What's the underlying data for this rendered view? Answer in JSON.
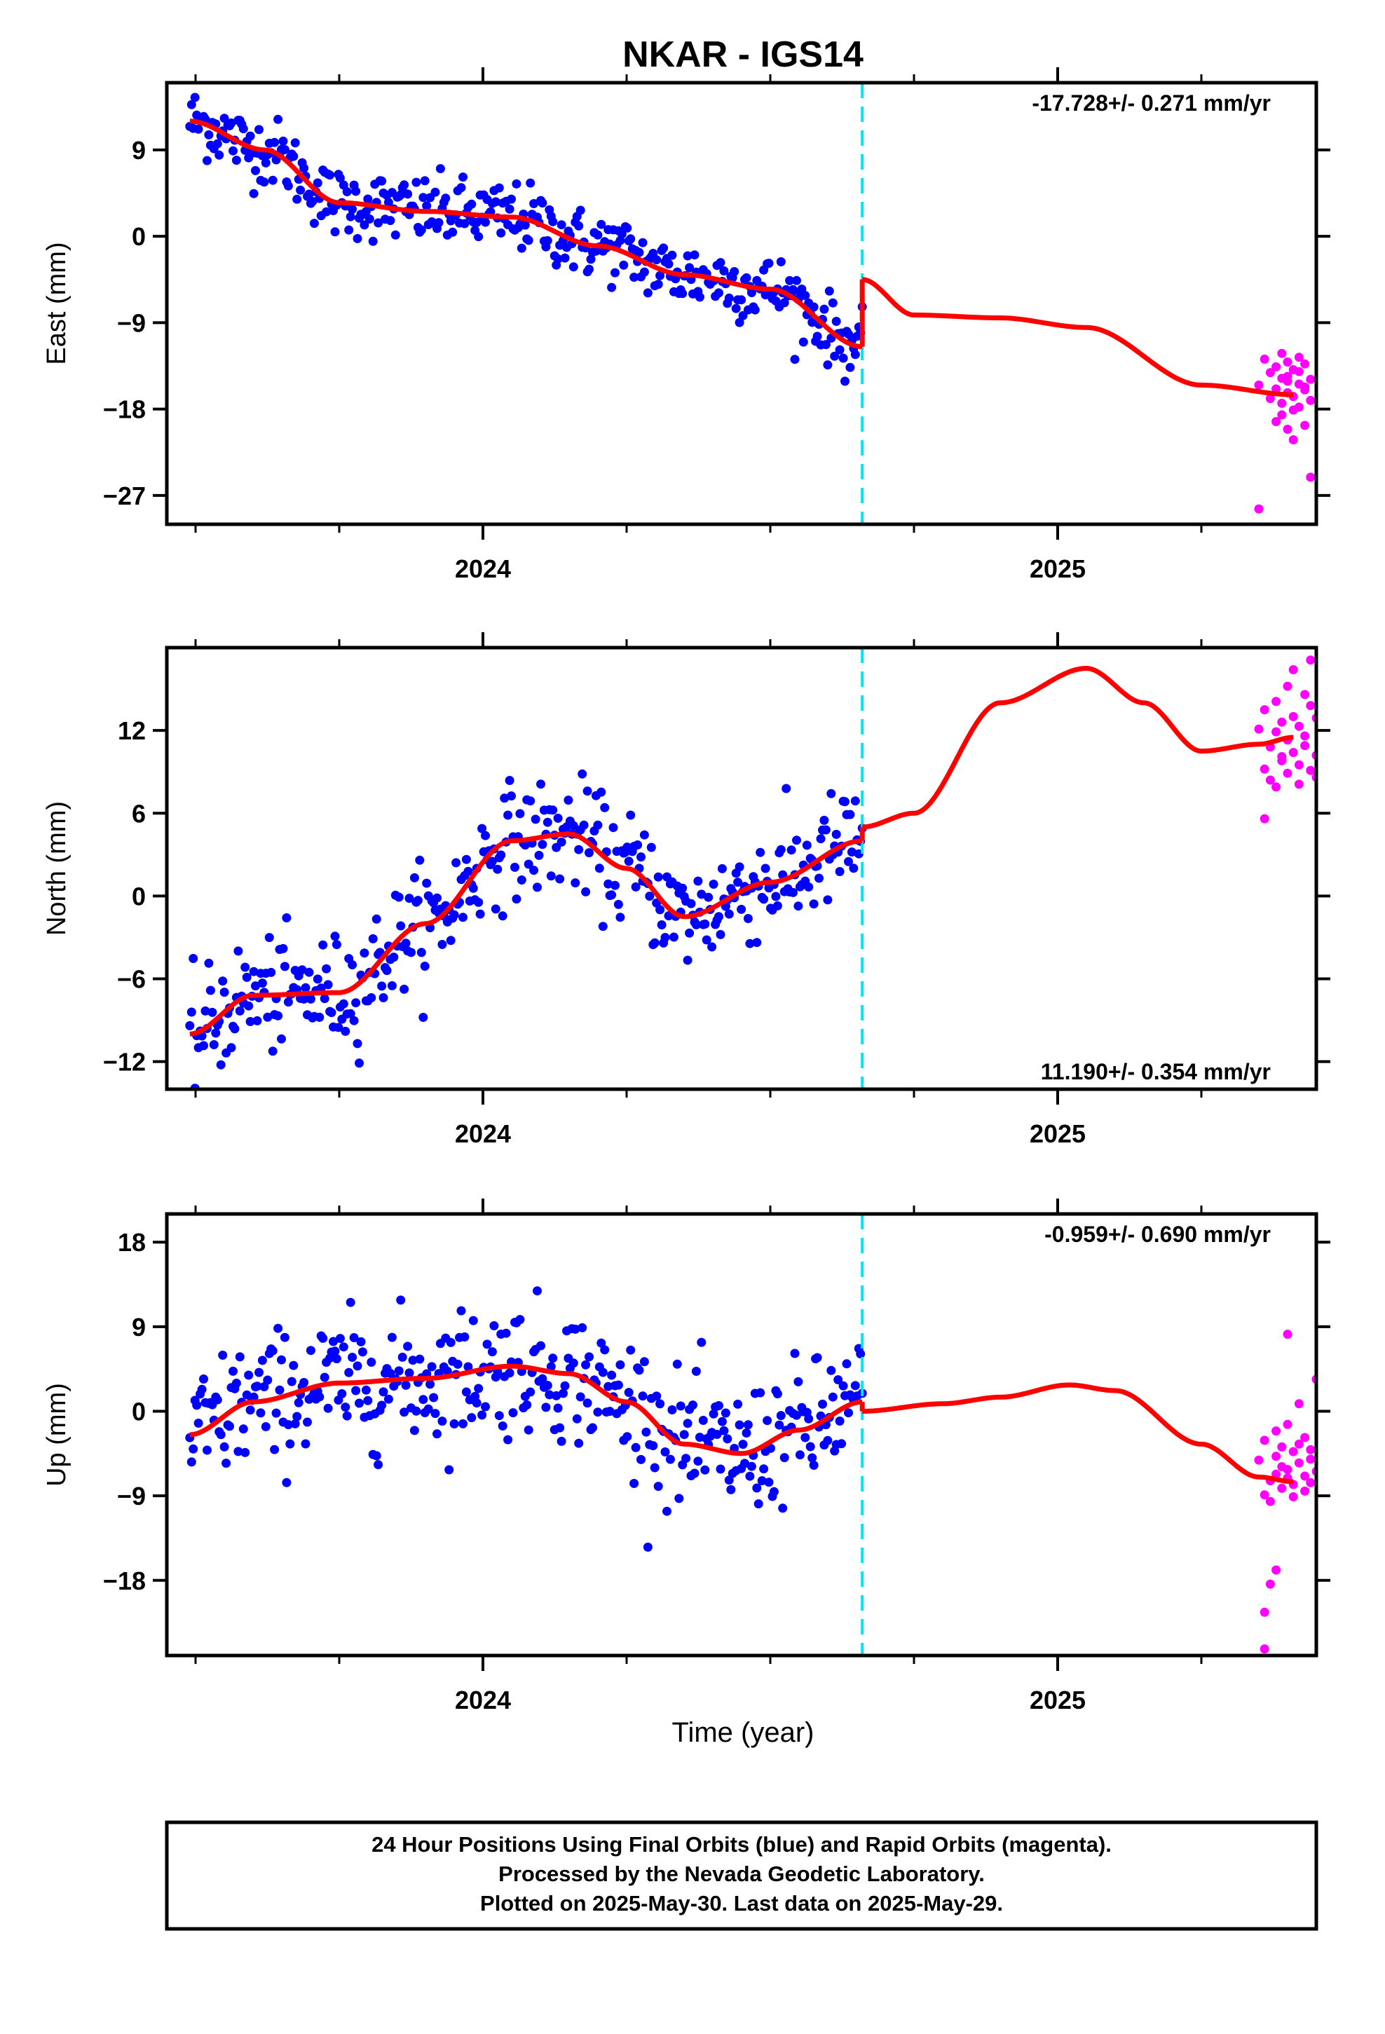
{
  "title": "NKAR - IGS14",
  "xlabel": "Time (year)",
  "footer": {
    "line1": "24 Hour Positions Using Final Orbits (blue) and Rapid Orbits (magenta).",
    "line2": "Processed by the Nevada Geodetic Laboratory.",
    "line3": "Plotted on 2025-May-30. Last data on 2025-May-29."
  },
  "colors": {
    "final": "#0000ff",
    "rapid": "#ff00ff",
    "model": "#ff0000",
    "break": "#00e5ee",
    "frame": "#000000"
  },
  "chart_data": [
    {
      "type": "scatter",
      "name": "east",
      "ylabel": "East (mm)",
      "xlim": [
        2023.45,
        2025.45
      ],
      "ylim": [
        -30,
        16
      ],
      "yticks": [
        -27,
        -18,
        -9,
        0,
        9
      ],
      "xticks": [
        2024,
        2025
      ],
      "rate": "-17.728+/- 0.271 mm/yr",
      "rate_position": "top-right",
      "break_x": 2024.66,
      "final_span": [
        2023.49,
        2024.66
      ],
      "rapid_span": [
        2025.34,
        2025.41
      ],
      "model_knots": [
        [
          2023.49,
          12
        ],
        [
          2023.62,
          9
        ],
        [
          2023.75,
          3.5
        ],
        [
          2023.9,
          2.6
        ],
        [
          2024.05,
          2
        ],
        [
          2024.2,
          -1
        ],
        [
          2024.35,
          -4
        ],
        [
          2024.5,
          -5.5
        ],
        [
          2024.66,
          -11.5
        ],
        [
          2024.66,
          -4.5
        ],
        [
          2024.75,
          -8.2
        ],
        [
          2024.9,
          -8.5
        ],
        [
          2025.05,
          -9.5
        ],
        [
          2025.25,
          -15.5
        ],
        [
          2025.41,
          -16.5
        ]
      ],
      "final_knots": [
        [
          2023.49,
          12
        ],
        [
          2023.62,
          9
        ],
        [
          2023.75,
          3.5
        ],
        [
          2023.9,
          2.6
        ],
        [
          2024.05,
          2
        ],
        [
          2024.2,
          -1
        ],
        [
          2024.35,
          -4
        ],
        [
          2024.5,
          -5.5
        ],
        [
          2024.66,
          -11.5
        ]
      ],
      "final_scatter": 1.8,
      "final_count": 390,
      "rapid_values": [
        -15.5,
        -12.8,
        -14.2,
        -16.9,
        -19.3,
        -13.6,
        -15.9,
        -18.6,
        -14.8,
        -12.2,
        -17.4,
        -20.1,
        -13.1,
        -16.3,
        -14.6,
        -15.1,
        -21.2,
        -13.9,
        -16.7,
        -18.1,
        -12.6,
        -15.4,
        -17.8,
        -14.1,
        -16.0,
        -13.3,
        -19.7,
        -15.7,
        -14.9,
        -17.1,
        -28.4,
        -25.1
      ],
      "rapid_x": [
        2025.35,
        2025.36,
        2025.37,
        2025.37,
        2025.38,
        2025.38,
        2025.38,
        2025.39,
        2025.39,
        2025.39,
        2025.39,
        2025.4,
        2025.4,
        2025.4,
        2025.4,
        2025.4,
        2025.41,
        2025.41,
        2025.41,
        2025.41,
        2025.42,
        2025.42,
        2025.42,
        2025.42,
        2025.43,
        2025.43,
        2025.43,
        2025.43,
        2025.44,
        2025.44,
        2025.35,
        2025.44
      ]
    },
    {
      "type": "scatter",
      "name": "north",
      "ylabel": "North (mm)",
      "xlim": [
        2023.45,
        2025.45
      ],
      "ylim": [
        -14,
        18
      ],
      "yticks": [
        -12,
        -6,
        0,
        6,
        12
      ],
      "xticks": [
        2024,
        2025
      ],
      "rate": "11.190+/- 0.354 mm/yr",
      "rate_position": "bottom-right",
      "break_x": 2024.66,
      "final_span": [
        2023.49,
        2024.66
      ],
      "rapid_span": [
        2025.34,
        2025.41
      ],
      "model_knots": [
        [
          2023.49,
          -10
        ],
        [
          2023.6,
          -7.2
        ],
        [
          2023.75,
          -7
        ],
        [
          2023.9,
          -2
        ],
        [
          2024.05,
          4
        ],
        [
          2024.15,
          4.5
        ],
        [
          2024.25,
          2
        ],
        [
          2024.35,
          -1.5
        ],
        [
          2024.5,
          1
        ],
        [
          2024.66,
          4
        ],
        [
          2024.66,
          5
        ],
        [
          2024.75,
          6
        ],
        [
          2024.9,
          14
        ],
        [
          2025.05,
          16.5
        ],
        [
          2025.15,
          14
        ],
        [
          2025.25,
          10.5
        ],
        [
          2025.35,
          11
        ],
        [
          2025.41,
          11.5
        ]
      ],
      "final_knots": [
        [
          2023.49,
          -10
        ],
        [
          2023.6,
          -7.2
        ],
        [
          2023.75,
          -7
        ],
        [
          2023.9,
          -2
        ],
        [
          2024.05,
          4
        ],
        [
          2024.15,
          4.5
        ],
        [
          2024.25,
          2
        ],
        [
          2024.35,
          -1.5
        ],
        [
          2024.5,
          1
        ],
        [
          2024.66,
          4
        ]
      ],
      "final_scatter": 2.0,
      "final_count": 390,
      "rapid_values": [
        12.1,
        9.2,
        13.5,
        8.4,
        10.8,
        11.9,
        14.1,
        7.9,
        10.1,
        12.6,
        9.8,
        15.2,
        8.9,
        11.3,
        13.0,
        10.4,
        16.4,
        9.5,
        12.3,
        8.1,
        14.6,
        10.9,
        11.6,
        9.1,
        17.1,
        13.8,
        8.6,
        12.9,
        5.6,
        10.2
      ],
      "rapid_x": [
        2025.35,
        2025.36,
        2025.36,
        2025.37,
        2025.37,
        2025.38,
        2025.38,
        2025.38,
        2025.39,
        2025.39,
        2025.39,
        2025.4,
        2025.4,
        2025.4,
        2025.41,
        2025.41,
        2025.41,
        2025.42,
        2025.42,
        2025.42,
        2025.43,
        2025.43,
        2025.43,
        2025.44,
        2025.44,
        2025.44,
        2025.45,
        2025.45,
        2025.36,
        2025.45
      ]
    },
    {
      "type": "scatter",
      "name": "up",
      "ylabel": "Up (mm)",
      "xlim": [
        2023.45,
        2025.45
      ],
      "ylim": [
        -26,
        21
      ],
      "yticks": [
        -18,
        -9,
        0,
        9,
        18
      ],
      "xticks": [
        2024,
        2025
      ],
      "rate": "-0.959+/- 0.690 mm/yr",
      "rate_position": "top-right",
      "break_x": 2024.66,
      "final_span": [
        2023.49,
        2024.66
      ],
      "rapid_span": [
        2025.34,
        2025.41
      ],
      "model_knots": [
        [
          2023.49,
          -2.5
        ],
        [
          2023.6,
          1
        ],
        [
          2023.75,
          3
        ],
        [
          2023.9,
          3.5
        ],
        [
          2024.05,
          4.8
        ],
        [
          2024.15,
          4
        ],
        [
          2024.25,
          1
        ],
        [
          2024.35,
          -3.5
        ],
        [
          2024.45,
          -4.5
        ],
        [
          2024.55,
          -2
        ],
        [
          2024.66,
          1
        ],
        [
          2024.66,
          0
        ],
        [
          2024.8,
          0.8
        ],
        [
          2024.9,
          1.5
        ],
        [
          2025.02,
          2.8
        ],
        [
          2025.1,
          2.2
        ],
        [
          2025.25,
          -3.5
        ],
        [
          2025.35,
          -7
        ],
        [
          2025.41,
          -7.5
        ]
      ],
      "final_knots": [
        [
          2023.49,
          -2.5
        ],
        [
          2023.6,
          1
        ],
        [
          2023.75,
          3
        ],
        [
          2023.9,
          3.5
        ],
        [
          2024.05,
          4.8
        ],
        [
          2024.15,
          4
        ],
        [
          2024.25,
          1
        ],
        [
          2024.35,
          -3.5
        ],
        [
          2024.45,
          -4.5
        ],
        [
          2024.55,
          -2
        ],
        [
          2024.66,
          1
        ]
      ],
      "final_scatter": 3.5,
      "final_count": 390,
      "rapid_values": [
        -5.2,
        -8.9,
        -3.1,
        -7.4,
        -9.6,
        -4.8,
        -6.7,
        -2.1,
        -8.2,
        -5.9,
        -3.8,
        -7.1,
        -1.4,
        -6.2,
        -9.1,
        -4.3,
        -7.8,
        -5.5,
        0.8,
        -3.5,
        -6.9,
        -8.5,
        -2.8,
        -5.1,
        -7.6,
        -4.1,
        3.4,
        -6.4,
        -25.3,
        -18.4,
        -16.9,
        8.2,
        -21.4
      ],
      "rapid_x": [
        2025.35,
        2025.36,
        2025.36,
        2025.37,
        2025.37,
        2025.38,
        2025.38,
        2025.38,
        2025.39,
        2025.39,
        2025.39,
        2025.4,
        2025.4,
        2025.4,
        2025.41,
        2025.41,
        2025.41,
        2025.42,
        2025.42,
        2025.42,
        2025.43,
        2025.43,
        2025.43,
        2025.44,
        2025.44,
        2025.44,
        2025.45,
        2025.45,
        2025.36,
        2025.37,
        2025.38,
        2025.4,
        2025.36
      ]
    }
  ]
}
